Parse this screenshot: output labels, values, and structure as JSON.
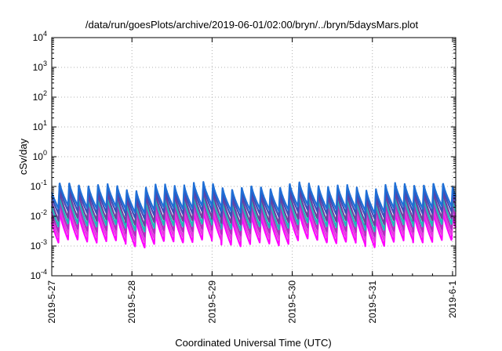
{
  "chart_data": {
    "type": "line",
    "title": "/data/run/goesPlots/archive/2019-06-01/02:00/bryn/../bryn/5daysMars.plot",
    "xlabel": "Coordinated Universal Time (UTC)",
    "ylabel": "cSv/day",
    "yscale": "log",
    "ylim": [
      0.0001,
      10000
    ],
    "xlim": [
      "2019-05-27T00:00",
      "2019-06-01T00:57"
    ],
    "grid": true,
    "y_ticks": [
      {
        "value": 0.0001,
        "base": "10",
        "exp": "-4"
      },
      {
        "value": 0.001,
        "base": "10",
        "exp": "-3"
      },
      {
        "value": 0.01,
        "base": "10",
        "exp": "-2"
      },
      {
        "value": 0.1,
        "base": "10",
        "exp": "-1"
      },
      {
        "value": 1,
        "base": "10",
        "exp": "0"
      },
      {
        "value": 10,
        "base": "10",
        "exp": "1"
      },
      {
        "value": 100,
        "base": "10",
        "exp": "2"
      },
      {
        "value": 1000,
        "base": "10",
        "exp": "3"
      },
      {
        "value": 10000,
        "base": "10",
        "exp": "4"
      }
    ],
    "x_ticks": [
      {
        "date": "2019-05-27",
        "label": "2019-5-27"
      },
      {
        "date": "2019-05-28",
        "label": "2019-5-28"
      },
      {
        "date": "2019-05-29",
        "label": "2019-5-29"
      },
      {
        "date": "2019-05-30",
        "label": "2019-5-30"
      },
      {
        "date": "2019-05-31",
        "label": "2019-5-31"
      },
      {
        "date": "2019-06-01",
        "label": "2019-6-1"
      }
    ],
    "pattern": {
      "description_free": true,
      "period_hours": 2.87,
      "series_peaks": [
        0.11,
        0.085,
        0.06,
        0.042,
        0.028,
        0.018,
        0.012
      ],
      "series_troughs": [
        0.018,
        0.012,
        0.007,
        0.0045,
        0.003,
        0.002,
        0.0013
      ],
      "series_colors": [
        "#1f6fd6",
        "#3a4fb8",
        "#6e3fa0",
        "#20b8b8",
        "#b02fc0",
        "#e33be0",
        "#ff00ff"
      ]
    }
  }
}
